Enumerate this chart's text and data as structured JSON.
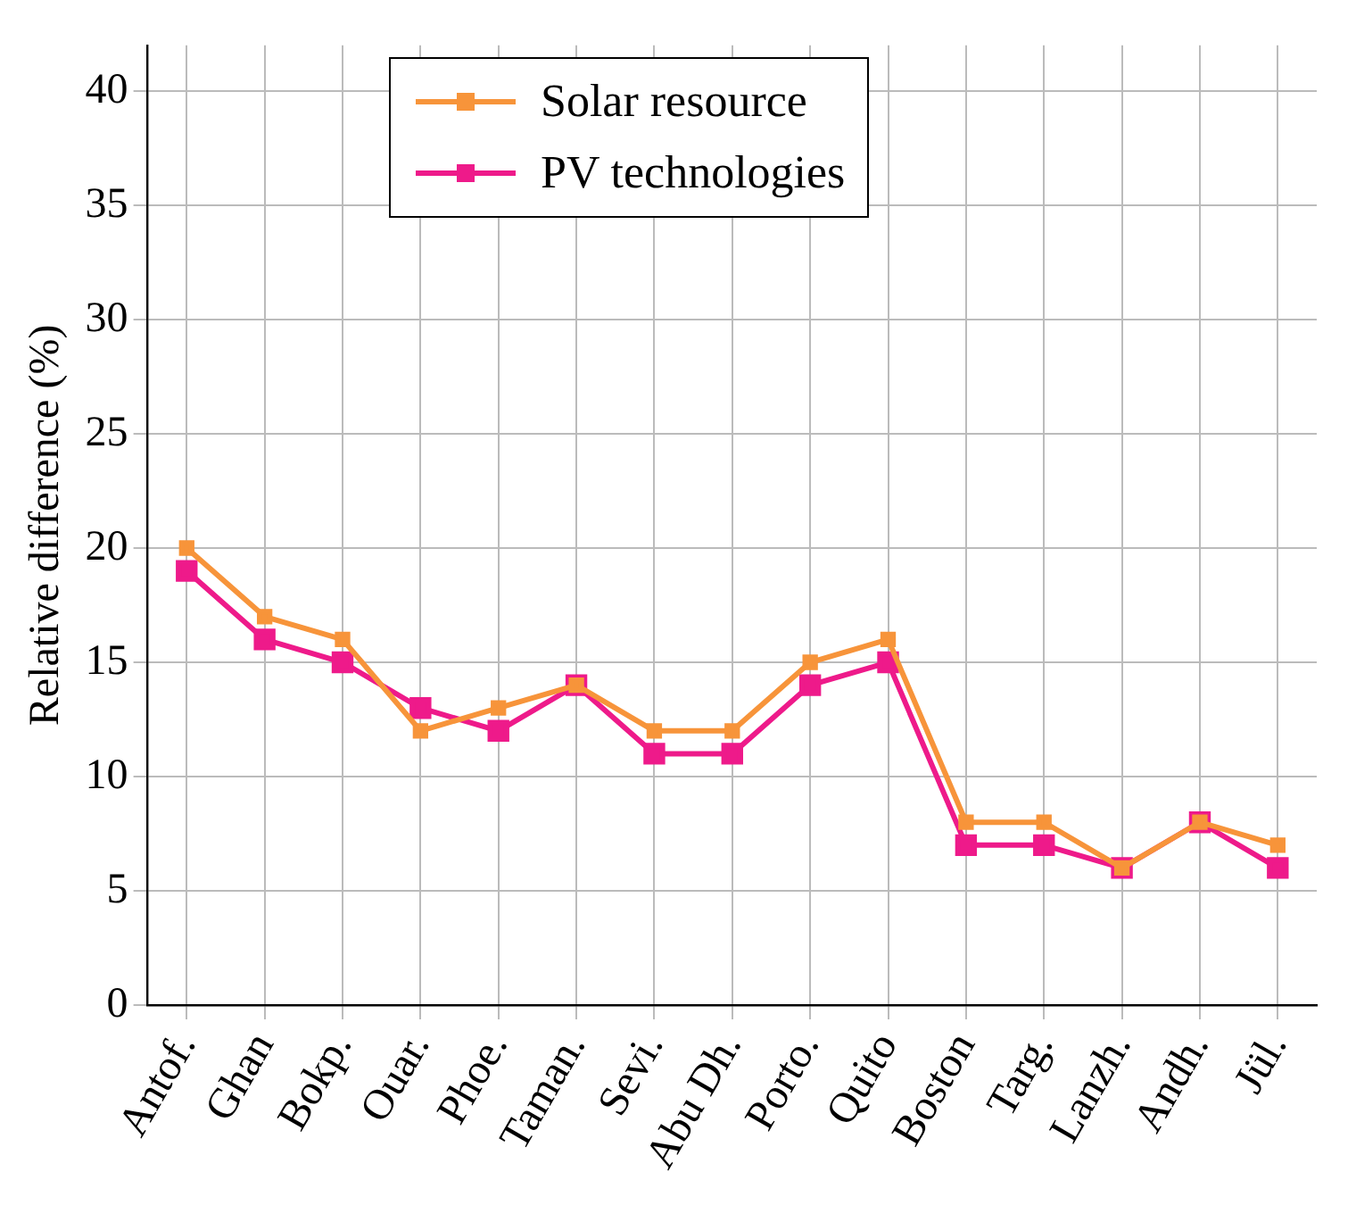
{
  "chart_data": {
    "type": "line",
    "ylabel": "Relative difference (%)",
    "categories": [
      "Antof.",
      "Ghan",
      "Bokp.",
      "Ouar.",
      "Phoe.",
      "Taman.",
      "Sevi.",
      "Abu Dh.",
      "Porto.",
      "Quito",
      "Boston",
      "Targ.",
      "Lanzh.",
      "Andh.",
      "Jül."
    ],
    "series": [
      {
        "name": "Solar resource",
        "color": "#f7943a",
        "values": [
          20,
          17,
          16,
          12,
          13,
          14,
          12,
          12,
          15,
          16,
          8,
          8,
          6,
          8,
          7
        ]
      },
      {
        "name": "PV technologies",
        "color": "#ee1a8a",
        "values": [
          19,
          16,
          15,
          13,
          12,
          14,
          11,
          11,
          14,
          15,
          7,
          7,
          6,
          8,
          6
        ]
      }
    ],
    "ylim": [
      0,
      42
    ],
    "yticks": [
      0,
      5,
      10,
      15,
      20,
      25,
      30,
      35,
      40
    ],
    "grid": true,
    "legend": "top left",
    "marker": "square",
    "line_style": "solid"
  }
}
